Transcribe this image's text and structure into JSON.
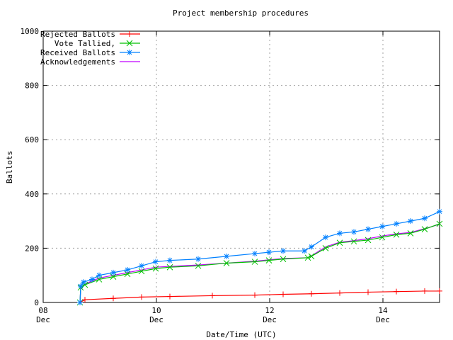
{
  "chart_data": {
    "type": "line",
    "title": "Project membership procedures",
    "xlabel": "Date/Time (UTC)",
    "ylabel": "Ballots",
    "xlim": [
      "Dec 08 00:00",
      "Dec 15 00:00"
    ],
    "ylim": [
      0,
      1000
    ],
    "grid": true,
    "legend_placement": "top-left",
    "x_ticks": [
      {
        "day": "08",
        "month": "Dec",
        "at": "Dec 08 00:00"
      },
      {
        "day": "10",
        "month": "Dec",
        "at": "Dec 10 00:00"
      },
      {
        "day": "12",
        "month": "Dec",
        "at": "Dec 12 00:00"
      },
      {
        "day": "14",
        "month": "Dec",
        "at": "Dec 14 00:00"
      }
    ],
    "y_ticks": [
      "0",
      "200",
      "400",
      "600",
      "800",
      "1000"
    ],
    "series": [
      {
        "name": "Rejected Ballots",
        "color": "#ff0000",
        "marker": "plus",
        "x": [
          "Dec 08 15:36",
          "Dec 08 17:42",
          "Dec 09 05:42",
          "Dec 09 17:42",
          "Dec 10 05:42",
          "Dec 10 23:42",
          "Dec 11 17:42",
          "Dec 12 05:42",
          "Dec 12 17:42",
          "Dec 13 05:42",
          "Dec 13 17:42",
          "Dec 14 05:42",
          "Dec 14 17:42",
          "Dec 15 00:00"
        ],
        "y": [
          0,
          10,
          15,
          20,
          22,
          25,
          27,
          30,
          32,
          35,
          38,
          40,
          42,
          42
        ]
      },
      {
        "name": "Vote Tallied,",
        "color": "#00c000",
        "marker": "cross",
        "x": [
          "Dec 08 15:36",
          "Dec 08 15:54",
          "Dec 08 17:42",
          "Dec 08 23:42",
          "Dec 09 05:42",
          "Dec 09 11:42",
          "Dec 09 17:42",
          "Dec 09 23:42",
          "Dec 10 05:42",
          "Dec 10 17:42",
          "Dec 11 05:42",
          "Dec 11 17:42",
          "Dec 11 23:42",
          "Dec 12 05:42",
          "Dec 12 16:12",
          "Dec 12 17:42",
          "Dec 12 23:42",
          "Dec 13 05:42",
          "Dec 13 11:42",
          "Dec 13 17:42",
          "Dec 13 23:42",
          "Dec 14 05:42",
          "Dec 14 11:42",
          "Dec 14 17:42",
          "Dec 15 00:00"
        ],
        "y": [
          0,
          55,
          65,
          85,
          95,
          105,
          115,
          125,
          130,
          135,
          145,
          150,
          155,
          160,
          165,
          170,
          200,
          220,
          225,
          230,
          240,
          250,
          255,
          270,
          290
        ]
      },
      {
        "name": "Received Ballots",
        "color": "#0080ff",
        "marker": "star",
        "x": [
          "Dec 08 15:36",
          "Dec 08 15:54",
          "Dec 08 17:06",
          "Dec 08 20:42",
          "Dec 08 23:42",
          "Dec 09 05:42",
          "Dec 09 11:42",
          "Dec 09 17:42",
          "Dec 09 23:42",
          "Dec 10 05:42",
          "Dec 10 17:42",
          "Dec 11 05:42",
          "Dec 11 17:42",
          "Dec 11 23:42",
          "Dec 12 05:42",
          "Dec 12 14:42",
          "Dec 12 17:42",
          "Dec 12 23:42",
          "Dec 13 05:42",
          "Dec 13 11:42",
          "Dec 13 17:42",
          "Dec 13 23:42",
          "Dec 14 05:42",
          "Dec 14 11:42",
          "Dec 14 17:42",
          "Dec 15 00:00"
        ],
        "y": [
          0,
          60,
          75,
          85,
          100,
          110,
          120,
          135,
          150,
          155,
          160,
          170,
          180,
          185,
          190,
          190,
          205,
          240,
          255,
          260,
          270,
          280,
          290,
          300,
          310,
          335
        ]
      },
      {
        "name": "Acknowledgements",
        "color": "#c000ff",
        "marker": "none",
        "x": [
          "Dec 08 15:36",
          "Dec 08 15:54",
          "Dec 08 17:42",
          "Dec 08 23:42",
          "Dec 09 05:42",
          "Dec 09 11:42",
          "Dec 09 17:42",
          "Dec 09 23:42",
          "Dec 10 05:42",
          "Dec 10 17:42",
          "Dec 11 05:42",
          "Dec 11 17:42",
          "Dec 11 23:42",
          "Dec 12 05:42",
          "Dec 12 16:12",
          "Dec 12 17:42",
          "Dec 12 23:42",
          "Dec 13 05:42",
          "Dec 13 11:42",
          "Dec 13 17:42",
          "Dec 13 23:42",
          "Dec 14 05:42",
          "Dec 14 11:42",
          "Dec 14 17:42",
          "Dec 15 00:00"
        ],
        "y": [
          0,
          50,
          68,
          90,
          100,
          110,
          120,
          130,
          133,
          138,
          145,
          152,
          157,
          162,
          165,
          172,
          205,
          222,
          228,
          235,
          245,
          253,
          258,
          272,
          288
        ]
      }
    ]
  }
}
